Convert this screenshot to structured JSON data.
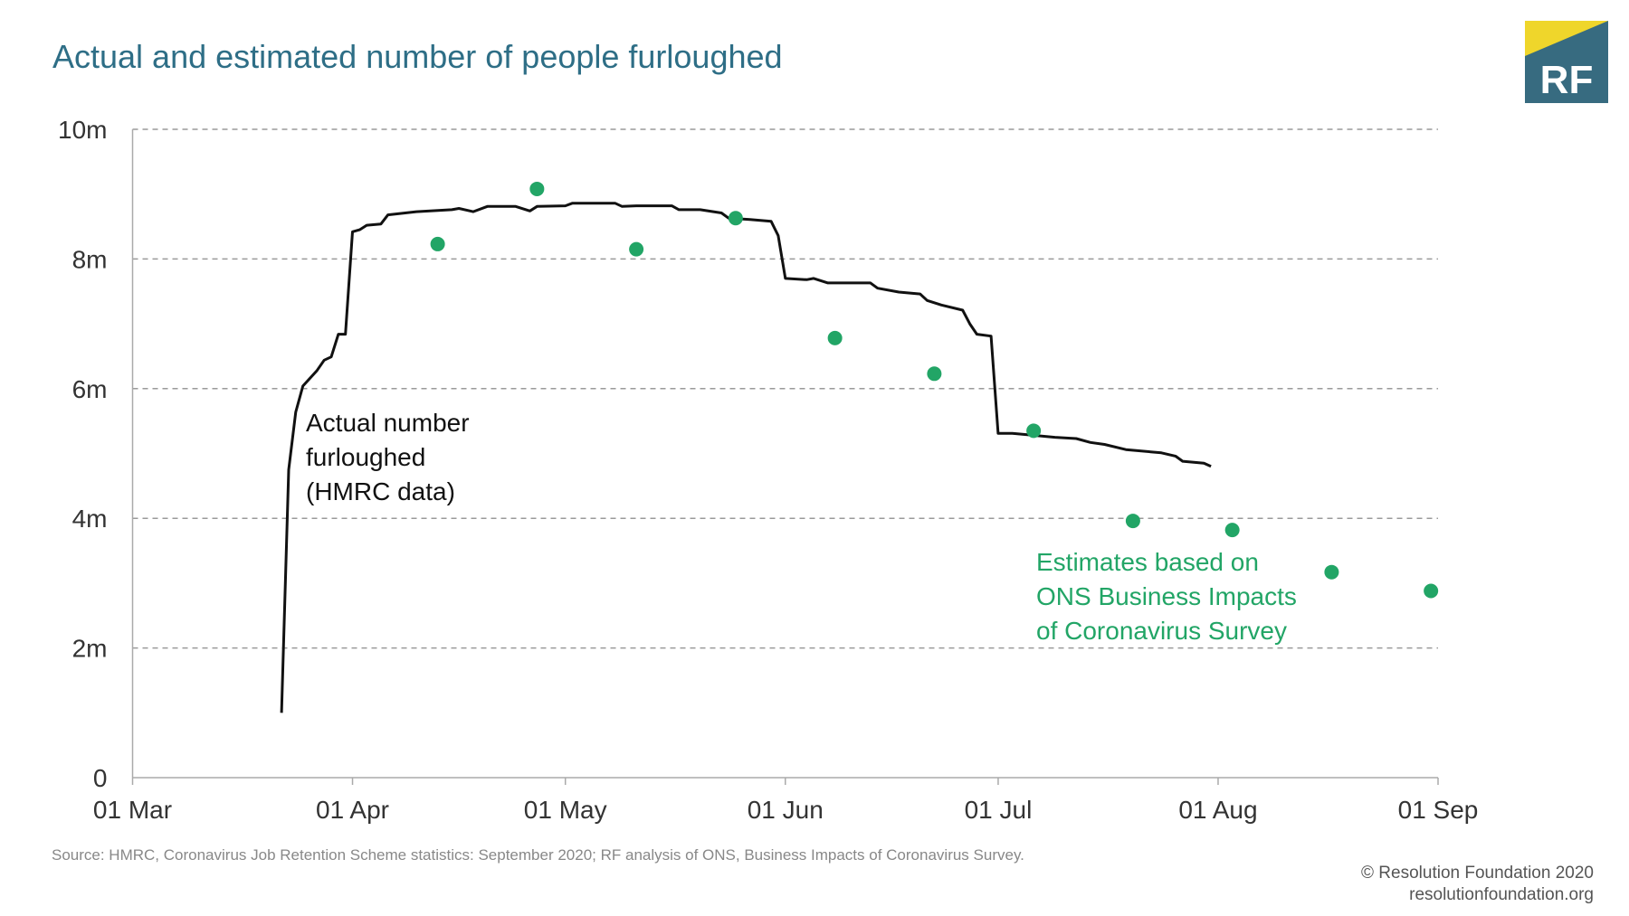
{
  "chart_data": {
    "type": "line",
    "title": "Actual and estimated number of people furloughed",
    "xlabel": "",
    "ylabel": "",
    "xlim": [
      "2020-03-01",
      "2020-09-01"
    ],
    "ylim": [
      0,
      10
    ],
    "x_ticks": [
      {
        "date": "2020-03-01",
        "label": "01 Mar"
      },
      {
        "date": "2020-04-01",
        "label": "01 Apr"
      },
      {
        "date": "2020-05-01",
        "label": "01 May"
      },
      {
        "date": "2020-06-01",
        "label": "01 Jun"
      },
      {
        "date": "2020-07-01",
        "label": "01 Jul"
      },
      {
        "date": "2020-08-01",
        "label": "01 Aug"
      },
      {
        "date": "2020-09-01",
        "label": "01 Sep"
      }
    ],
    "y_ticks": [
      {
        "value": 0,
        "label": "0"
      },
      {
        "value": 2,
        "label": "2m"
      },
      {
        "value": 4,
        "label": "4m"
      },
      {
        "value": 6,
        "label": "6m"
      },
      {
        "value": 8,
        "label": "8m"
      },
      {
        "value": 10,
        "label": "10m"
      }
    ],
    "grid": "horizontal dashed",
    "series": [
      {
        "kind": "line",
        "color": "#111111",
        "annotation": [
          "Actual number",
          "furloughed",
          "(HMRC data)"
        ],
        "points": [
          [
            "2020-03-22",
            1.0
          ],
          [
            "2020-03-23",
            4.75
          ],
          [
            "2020-03-24",
            5.64
          ],
          [
            "2020-03-25",
            6.04
          ],
          [
            "2020-03-27",
            6.28
          ],
          [
            "2020-03-28",
            6.44
          ],
          [
            "2020-03-29",
            6.49
          ],
          [
            "2020-03-30",
            6.84
          ],
          [
            "2020-03-31",
            6.84
          ],
          [
            "2020-04-01",
            8.42
          ],
          [
            "2020-04-02",
            8.45
          ],
          [
            "2020-04-03",
            8.52
          ],
          [
            "2020-04-05",
            8.54
          ],
          [
            "2020-04-06",
            8.68
          ],
          [
            "2020-04-10",
            8.73
          ],
          [
            "2020-04-15",
            8.76
          ],
          [
            "2020-04-16",
            8.78
          ],
          [
            "2020-04-18",
            8.73
          ],
          [
            "2020-04-20",
            8.81
          ],
          [
            "2020-04-24",
            8.81
          ],
          [
            "2020-04-26",
            8.74
          ],
          [
            "2020-04-27",
            8.81
          ],
          [
            "2020-05-01",
            8.82
          ],
          [
            "2020-05-02",
            8.86
          ],
          [
            "2020-05-04",
            8.86
          ],
          [
            "2020-05-08",
            8.86
          ],
          [
            "2020-05-09",
            8.81
          ],
          [
            "2020-05-11",
            8.82
          ],
          [
            "2020-05-16",
            8.82
          ],
          [
            "2020-05-17",
            8.76
          ],
          [
            "2020-05-20",
            8.76
          ],
          [
            "2020-05-23",
            8.71
          ],
          [
            "2020-05-24",
            8.63
          ],
          [
            "2020-05-27",
            8.61
          ],
          [
            "2020-05-30",
            8.58
          ],
          [
            "2020-05-31",
            8.36
          ],
          [
            "2020-06-01",
            7.7
          ],
          [
            "2020-06-04",
            7.68
          ],
          [
            "2020-06-05",
            7.7
          ],
          [
            "2020-06-07",
            7.63
          ],
          [
            "2020-06-13",
            7.63
          ],
          [
            "2020-06-14",
            7.55
          ],
          [
            "2020-06-17",
            7.49
          ],
          [
            "2020-06-20",
            7.46
          ],
          [
            "2020-06-21",
            7.36
          ],
          [
            "2020-06-23",
            7.29
          ],
          [
            "2020-06-26",
            7.21
          ],
          [
            "2020-06-27",
            7.0
          ],
          [
            "2020-06-28",
            6.84
          ],
          [
            "2020-06-30",
            6.81
          ],
          [
            "2020-07-01",
            5.31
          ],
          [
            "2020-07-03",
            5.31
          ],
          [
            "2020-07-06",
            5.28
          ],
          [
            "2020-07-09",
            5.25
          ],
          [
            "2020-07-12",
            5.23
          ],
          [
            "2020-07-14",
            5.17
          ],
          [
            "2020-07-16",
            5.14
          ],
          [
            "2020-07-19",
            5.06
          ],
          [
            "2020-07-24",
            5.01
          ],
          [
            "2020-07-26",
            4.96
          ],
          [
            "2020-07-27",
            4.88
          ],
          [
            "2020-07-30",
            4.85
          ],
          [
            "2020-07-31",
            4.8
          ]
        ]
      },
      {
        "kind": "scatter",
        "color": "#22a566",
        "annotation": [
          "Estimates based on",
          "ONS Business Impacts",
          "of Coronavirus Survey"
        ],
        "points": [
          [
            "2020-04-13",
            8.23
          ],
          [
            "2020-04-27",
            9.08
          ],
          [
            "2020-05-11",
            8.15
          ],
          [
            "2020-05-25",
            8.63
          ],
          [
            "2020-06-08",
            6.78
          ],
          [
            "2020-06-22",
            6.23
          ],
          [
            "2020-07-06",
            5.35
          ],
          [
            "2020-07-20",
            3.96
          ],
          [
            "2020-08-03",
            3.82
          ],
          [
            "2020-08-17",
            3.17
          ],
          [
            "2020-08-31",
            2.88
          ]
        ]
      }
    ]
  },
  "colors": {
    "title": "#2e6e86",
    "logo_blue": "#376b80",
    "logo_yellow": "#efd62b"
  },
  "logo": {
    "text": "RF"
  },
  "footer": {
    "source": "Source: HMRC, Coronavirus Job Retention Scheme statistics: September 2020; RF analysis of ONS, Business Impacts of Coronavirus Survey.",
    "copyright": "© Resolution Foundation 2020",
    "website": "resolutionfoundation.org"
  }
}
